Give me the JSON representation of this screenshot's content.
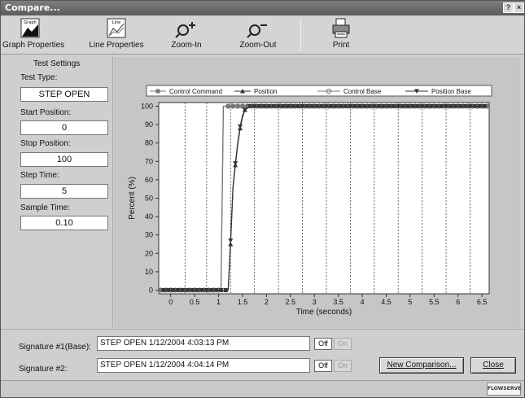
{
  "window": {
    "title": "Compare..."
  },
  "toolbar": {
    "graph_properties": "Graph Properties",
    "line_properties": "Line Properties",
    "zoom_in": "Zoom-In",
    "zoom_out": "Zoom-Out",
    "print": "Print",
    "graph_icon_text": "Graph",
    "line_icon_text": "Line"
  },
  "settings": {
    "heading": "Test Settings",
    "test_type_label": "Test Type:",
    "test_type": "STEP OPEN",
    "start_position_label": "Start Position:",
    "start_position": "0",
    "stop_position_label": "Stop Position:",
    "stop_position": "100",
    "step_time_label": "Step Time:",
    "step_time": "5",
    "sample_time_label": "Sample Time:",
    "sample_time": "0.10"
  },
  "signatures": {
    "sig1_label": "Signature #1(Base):",
    "sig1_value": "STEP OPEN 1/12/2004 4:03:13 PM",
    "sig2_label": "Signature #2:",
    "sig2_value": "STEP OPEN 1/12/2004 4:04:14 PM",
    "off_label": "Off",
    "on_label": "On"
  },
  "buttons": {
    "new_comparison": "New Comparison...",
    "close": "Close"
  },
  "status": {
    "logo_text": "FLOWSERVE"
  },
  "chart_data": {
    "type": "line",
    "xlabel": "Time (seconds)",
    "ylabel": "Percent (%)",
    "xlim": [
      -0.25,
      6.65
    ],
    "ylim": [
      -2,
      102
    ],
    "x_ticks": [
      "0",
      "0.5",
      "1",
      "1.5",
      "2",
      "2.5",
      "3",
      "3.5",
      "4",
      "4.5",
      "5",
      "5.5",
      "6",
      "6.5"
    ],
    "y_ticks": [
      "0",
      "10",
      "20",
      "30",
      "40",
      "50",
      "60",
      "70",
      "80",
      "90",
      "100"
    ],
    "vertical_gridlines_x": [
      0.3,
      0.75,
      1.25,
      1.75,
      2.25,
      2.75,
      3.25,
      3.75,
      4.25,
      4.75,
      5.25,
      5.75,
      6.25
    ],
    "legend_placement": "top",
    "series": [
      {
        "name": "Control Command",
        "marker": "square",
        "color": "#777777",
        "x": [
          -0.2,
          1.05,
          1.1,
          6.6
        ],
        "y": [
          0,
          0,
          100,
          100
        ]
      },
      {
        "name": "Position",
        "marker": "triangle-up",
        "color": "#333333",
        "x": [
          -0.2,
          1.2,
          1.25,
          1.3,
          1.35,
          1.4,
          1.45,
          1.5,
          1.55,
          1.6,
          1.65,
          1.7,
          6.6
        ],
        "y": [
          0,
          0,
          25,
          55,
          68,
          79,
          88,
          94,
          98,
          99,
          100,
          100,
          100
        ]
      },
      {
        "name": "Control Base",
        "marker": "circle",
        "color": "#777777",
        "x": [
          -0.2,
          1.05,
          1.1,
          6.6
        ],
        "y": [
          0,
          0,
          100,
          100
        ]
      },
      {
        "name": "Position Base",
        "marker": "triangle-down",
        "color": "#333333",
        "x": [
          -0.2,
          1.2,
          1.25,
          1.3,
          1.35,
          1.4,
          1.45,
          1.5,
          1.55,
          1.6,
          1.65,
          1.7,
          6.6
        ],
        "y": [
          0,
          0,
          27,
          56,
          69,
          80,
          89,
          95,
          98,
          99,
          100,
          100,
          100
        ]
      }
    ]
  }
}
